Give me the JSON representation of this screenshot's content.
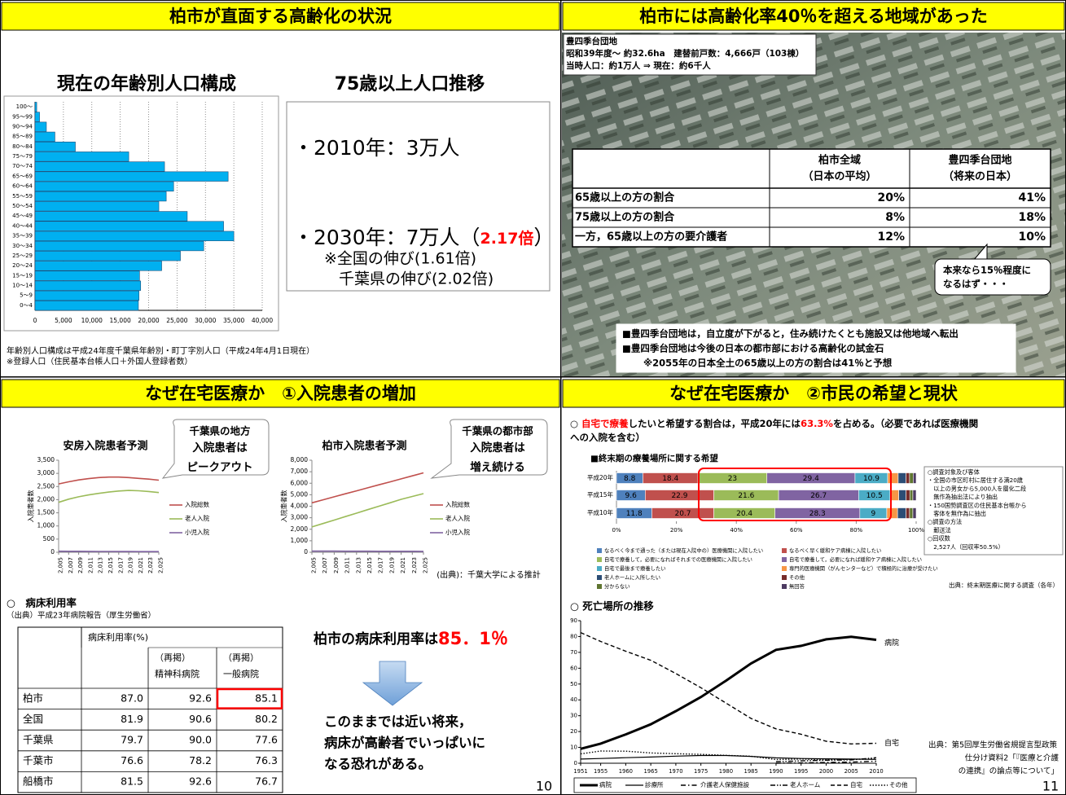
{
  "panel1": {
    "title": "柏市が直面する高齢化の状況",
    "heading_left": "現在の年齢別人口構成",
    "heading_right": "75歳以上人口推移",
    "line_2010": "・2010年：3万人",
    "line_2030": [
      "・2030年：7万人（",
      "2.17倍",
      "）"
    ],
    "note_national": "※全国の伸び(1.61倍)",
    "note_chiba": "千葉県の伸び(2.02倍)",
    "footnotes": [
      "年齢別人口構成は平成24年度千葉県年齢別・町丁字別人口（平成24年4月1日現在）",
      "※登録人口（住民基本台帳人口＋外国人登録者数）"
    ]
  },
  "panel2": {
    "title": "柏市には高齢化率40％を超える地域があった",
    "info": [
      "豊四季台団地",
      "昭和39年度～ 約32.6ha　建替前戸数：4,666戸（103棟）",
      "当時人口：約1万人 ⇒ 現在：約6千人"
    ],
    "table": {
      "header": [
        [
          "柏市全域",
          "（日本の平均）"
        ],
        [
          "豊四季台団地",
          "（将来の日本）"
        ]
      ],
      "rows": [
        [
          "65歳以上の方の割合",
          "20%",
          "41%"
        ],
        [
          "75歳以上の方の割合",
          "8%",
          "18%"
        ],
        [
          "一方，65歳以上の方の要介護者",
          "12%",
          "10%"
        ]
      ]
    },
    "callout": [
      "本来なら15％程度に",
      "なるはず・・・"
    ],
    "notes": [
      "■豊四季台団地は，自立度が下がると，住み続けたくとも施設又は他地域へ転出",
      "■豊四季台団地は今後の日本の都市部における高齢化の試金石",
      "※2055年の日本全土の65歳以上の方の割合は41％と予想"
    ]
  },
  "panel3": {
    "title": "なぜ在宅医療か　①入院患者の増加",
    "callout_awa": [
      "千葉県の地方",
      "入院患者は",
      "ピークアウト"
    ],
    "callout_kashiwa": [
      "千葉県の都市部",
      "入院患者は",
      "増え続ける"
    ],
    "source": "(出典)：千葉大学による推計",
    "bed_heading": "○　病床利用率",
    "bed_source": "（出典）平成23年病院報告（厚生労働省）",
    "bed_table": {
      "header": [
        "病床利用率(%)",
        [
          "（再掲）",
          "精神科病院"
        ],
        [
          "（再掲）",
          "一般病院"
        ]
      ],
      "rows": [
        [
          "柏市",
          "87.0",
          "92.6",
          "85.1"
        ],
        [
          "全国",
          "81.9",
          "90.6",
          "80.2"
        ],
        [
          "千葉県",
          "79.7",
          "90.0",
          "77.6"
        ],
        [
          "千葉市",
          "76.6",
          "78.2",
          "76.3"
        ],
        [
          "船橋市",
          "81.5",
          "92.6",
          "76.7"
        ]
      ]
    },
    "rate_text": [
      "柏市の病床利用率は",
      "85．1％"
    ],
    "warning": [
      "このままでは近い将来，",
      "病床が高齢者でいっぱいに",
      "なる恐れがある。"
    ],
    "page": "10"
  },
  "panel4": {
    "title": "なぜ在宅医療か　②市民の希望と現状",
    "statement": [
      [
        "○ ",
        "自宅で療養",
        "したいと希望する割合は，平成20年には",
        "63.3%",
        "を占める。（必要であれば医療機関"
      ],
      [
        "への入院を含む）"
      ]
    ],
    "survey_notes": [
      "○調査対象及び客体",
      "・全国の市区町村に居住する満20歳",
      "　以上の男女から5,000人を層化二段",
      "　無作為抽出法により抽出",
      "・150国勢調査区の住民基本台帳から",
      "　客体を無作為に抽出",
      "○調査の方法",
      "　郵送法",
      "○回収数",
      "　2,527人（回収率50.5%）"
    ],
    "survey_source": "出典：終末期医療に関する調査（各年）",
    "death_heading": "○ 死亡場所の推移",
    "death_source": [
      "出典：第5回厚生労働省規提言型政策",
      "仕分け資料2「『医療と介護",
      "の連携』の論点等について」"
    ],
    "page": "11"
  },
  "chart_data": [
    {
      "type": "hbar",
      "categories": [
        "100～",
        "95～99",
        "90～94",
        "85～89",
        "80～84",
        "75～79",
        "70～74",
        "65～69",
        "60～64",
        "55～59",
        "50～54",
        "45～49",
        "40～44",
        "35～39",
        "30～34",
        "25～29",
        "20～24",
        "15～19",
        "10～14",
        "5～9",
        "0～4"
      ],
      "values": [
        300,
        800,
        2000,
        3500,
        7100,
        16500,
        22800,
        34000,
        24400,
        23100,
        21800,
        26800,
        33200,
        35000,
        29700,
        25600,
        22300,
        18400,
        18600,
        18300,
        18200
      ],
      "color": "#00b0f0",
      "xlim": [
        0,
        40000
      ],
      "xticks": [
        0,
        {
          "value": 5000,
          "label": "5,000"
        },
        {
          "value": 10000,
          "label": "10,000"
        },
        {
          "value": 15000,
          "label": "15,000"
        },
        {
          "value": 20000,
          "label": "20,000"
        },
        {
          "value": 25000,
          "label": "25,000"
        },
        {
          "value": 30000,
          "label": "30,000"
        },
        {
          "value": 35000,
          "label": "35,000"
        },
        {
          "value": 40000,
          "label": "40,000"
        }
      ],
      "grid": true
    },
    {
      "type": "line",
      "title": "安房入院患者予測",
      "y_label": "入院患者数",
      "categories": [
        "2,005",
        "2,007",
        "2,009",
        "2,011",
        "2,013",
        "2,015",
        "2,017",
        "2,019",
        "2,021",
        "2,023",
        "2,025"
      ],
      "series": [
        {
          "name": "入院総数",
          "color": "#c0504d",
          "values": [
            2600,
            2680,
            2750,
            2800,
            2840,
            2860,
            2860,
            2840,
            2810,
            2780,
            2740
          ]
        },
        {
          "name": "老人入院",
          "color": "#9bbb59",
          "values": [
            1900,
            2020,
            2110,
            2180,
            2240,
            2290,
            2330,
            2350,
            2340,
            2310,
            2270
          ]
        },
        {
          "name": "小児入院",
          "color": "#8064a2",
          "values": [
            40,
            38,
            36,
            34,
            32,
            30,
            28,
            27,
            26,
            25,
            24
          ]
        }
      ],
      "ylim": [
        0,
        3500
      ],
      "yticks": [
        0,
        500,
        {
          "value": 1000,
          "label": "1,000"
        },
        {
          "value": 1500,
          "label": "1,500"
        },
        {
          "value": 2000,
          "label": "2,000"
        },
        {
          "value": 2500,
          "label": "2,500"
        },
        {
          "value": 3000,
          "label": "3,000"
        },
        {
          "value": 3500,
          "label": "3,500"
        }
      ]
    },
    {
      "type": "line",
      "title": "柏市入院患者予測",
      "y_label": "入院患者数",
      "categories": [
        "2,005",
        "2,007",
        "2,009",
        "2,011",
        "2,013",
        "2,015",
        "2,017",
        "2,019",
        "2,021",
        "2,023",
        "2,025"
      ],
      "series": [
        {
          "name": "入院総数",
          "color": "#c0504d",
          "values": [
            4300,
            4560,
            4820,
            5080,
            5340,
            5600,
            5860,
            6120,
            6380,
            6640,
            6900
          ]
        },
        {
          "name": "老人入院",
          "color": "#9bbb59",
          "values": [
            2200,
            2500,
            2800,
            3100,
            3400,
            3700,
            4000,
            4300,
            4600,
            4850,
            5100
          ]
        },
        {
          "name": "小児入院",
          "color": "#8064a2",
          "values": [
            100,
            98,
            96,
            94,
            92,
            90,
            88,
            86,
            84,
            82,
            80
          ]
        }
      ],
      "ylim": [
        0,
        8000
      ],
      "yticks": [
        0,
        {
          "value": 1000,
          "label": "1,000"
        },
        {
          "value": 2000,
          "label": "2,000"
        },
        {
          "value": 3000,
          "label": "3,000"
        },
        {
          "value": 4000,
          "label": "4,000"
        },
        {
          "value": 5000,
          "label": "5,000"
        },
        {
          "value": 6000,
          "label": "6,000"
        },
        {
          "value": 7000,
          "label": "7,000"
        },
        {
          "value": 8000,
          "label": "8,000"
        }
      ]
    },
    {
      "type": "stacked_hbar",
      "title": "■終末期の療養場所に関する希望",
      "categories": [
        "平成20年",
        "平成15年",
        "平成10年"
      ],
      "series": [
        {
          "name": "なるべく今まで通った（または現在入院中の）医療機関に入院したい",
          "color": "#4f81bd",
          "values": [
            8.8,
            9.6,
            11.8
          ]
        },
        {
          "name": "なるべく早く緩和ケア病棟に入院したい",
          "color": "#c0504d",
          "values": [
            18.4,
            22.9,
            20.7
          ]
        },
        {
          "name": "自宅で療養して，必要になればそれまでの医療機関に入院したい",
          "color": "#9bbb59",
          "values": [
            23,
            21.6,
            20.4
          ]
        },
        {
          "name": "自宅で療養して，必要になれば緩和ケア病棟に入院したい",
          "color": "#8064a2",
          "values": [
            29.4,
            26.7,
            28.3
          ]
        },
        {
          "name": "自宅で最後まで療養したい",
          "color": "#4bacc6",
          "values": [
            10.9,
            10.5,
            9
          ]
        },
        {
          "name": "専門的医療機関（がんセンターなど）で積極的に治療が受けたい",
          "color": "#f79646",
          "values": [
            3.5,
            2.9,
            3.6
          ]
        },
        {
          "name": "老人ホームに入所したい",
          "color": "#2c4d75",
          "values": [
            2.6,
            2.4,
            2.8
          ]
        },
        {
          "name": "その他",
          "color": "#772c2a",
          "values": [
            1.2,
            1.3,
            1.2
          ]
        },
        {
          "name": "分からない",
          "color": "#5f7530",
          "values": [
            1.2,
            1.0,
            1.1
          ]
        },
        {
          "name": "無回答",
          "color": "#4d3b62",
          "values": [
            1.0,
            1.1,
            1.1
          ]
        }
      ],
      "xlim": [
        0,
        100
      ],
      "xticks": [
        {
          "value": 0,
          "label": "0%"
        },
        {
          "value": 20,
          "label": "20%"
        },
        {
          "value": 40,
          "label": "40%"
        },
        {
          "value": 60,
          "label": "60%"
        },
        {
          "value": 80,
          "label": "80%"
        },
        {
          "value": 100,
          "label": "100%"
        }
      ]
    },
    {
      "type": "line_numeric",
      "x": [
        1951,
        1955,
        1960,
        1965,
        1970,
        1975,
        1980,
        1985,
        1990,
        1995,
        2000,
        2005,
        2010
      ],
      "series": [
        {
          "name": "病院",
          "color": "#000000",
          "style": "thick",
          "values": [
            9.1,
            12.4,
            18.2,
            24.6,
            32.9,
            41.8,
            52.1,
            63.0,
            71.6,
            74.1,
            78.2,
            79.8,
            77.9
          ]
        },
        {
          "name": "診療所",
          "color": "#000000",
          "style": "solid",
          "values": [
            2.6,
            3.0,
            3.5,
            3.9,
            4.5,
            4.9,
            4.9,
            4.3,
            3.4,
            3.0,
            2.8,
            2.6,
            2.4
          ]
        },
        {
          "name": "介護老人保健施設",
          "color": "#000000",
          "style": "dashdot",
          "values": [
            null,
            null,
            null,
            null,
            null,
            null,
            null,
            null,
            0.0,
            0.2,
            0.5,
            0.7,
            1.3
          ]
        },
        {
          "name": "老人ホーム",
          "color": "#000000",
          "style": "dashdotdot",
          "values": [
            null,
            null,
            null,
            null,
            null,
            null,
            null,
            null,
            1.0,
            1.5,
            1.9,
            2.1,
            3.5
          ]
        },
        {
          "name": "自宅",
          "color": "#000000",
          "style": "dashed",
          "values": [
            82.5,
            76.9,
            70.7,
            65.0,
            56.6,
            47.7,
            38.0,
            28.3,
            21.7,
            18.3,
            13.9,
            12.2,
            12.6
          ]
        },
        {
          "name": "その他",
          "color": "#000000",
          "style": "dotted",
          "values": [
            5.9,
            7.7,
            7.6,
            6.5,
            6.0,
            5.6,
            5.0,
            4.4,
            2.3,
            2.7,
            2.1,
            2.5,
            2.6
          ]
        }
      ],
      "xlim": [
        1951,
        2010
      ],
      "xticks": [
        1951,
        1955,
        1960,
        1965,
        1970,
        1975,
        1980,
        1985,
        1990,
        1995,
        2000,
        2005,
        2010
      ],
      "ylim": [
        0,
        90
      ],
      "yticks": [
        0,
        10,
        20,
        30,
        40,
        50,
        60,
        70,
        80,
        90
      ]
    }
  ]
}
